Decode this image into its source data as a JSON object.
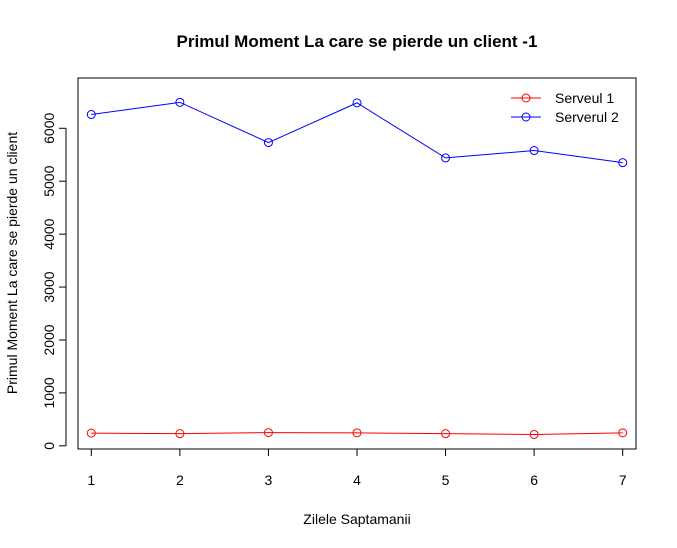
{
  "chart_data": {
    "type": "line",
    "title": "Primul Moment La care se pierde un client -1",
    "xlabel": "Zilele Saptamanii",
    "ylabel": "Primul Moment La care se pierde un client",
    "x": [
      1,
      2,
      3,
      4,
      5,
      6,
      7
    ],
    "xlim": [
      0.85,
      7.15
    ],
    "ylim": [
      -60,
      6950
    ],
    "xticks": [
      1,
      2,
      3,
      4,
      5,
      6,
      7
    ],
    "yticks": [
      0,
      1000,
      2000,
      3000,
      4000,
      5000,
      6000
    ],
    "grid": false,
    "legend_position": "top-right",
    "series": [
      {
        "name": "Serveul 1",
        "color": "#ff0000",
        "marker": "open-circle",
        "values": [
          240,
          230,
          250,
          245,
          230,
          215,
          245
        ]
      },
      {
        "name": "Serverul 2",
        "color": "#0000ff",
        "marker": "open-circle",
        "values": [
          6260,
          6490,
          5730,
          6480,
          5440,
          5580,
          5350
        ]
      }
    ]
  }
}
